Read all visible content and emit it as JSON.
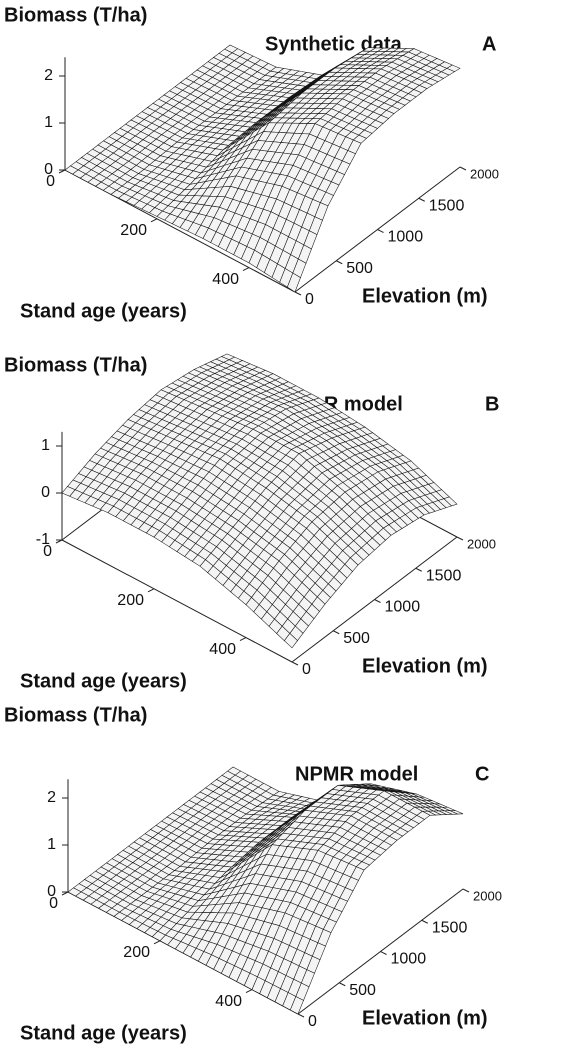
{
  "chart_data": [
    {
      "type": "surface",
      "title": "Synthetic data",
      "panel_label": "A",
      "z_label": "Biomass (T/ha)",
      "x_label": "Stand age (years)",
      "y_label": "Elevation (m)",
      "x": [
        0,
        100,
        200,
        300,
        400,
        500
      ],
      "y": [
        0,
        400,
        800,
        1200,
        1600,
        2000
      ],
      "z": [
        [
          0,
          0,
          0,
          0,
          0,
          0
        ],
        [
          0,
          0,
          0.05,
          0.05,
          0.05,
          0.05
        ],
        [
          0.05,
          0.2,
          0.4,
          0.45,
          0.45,
          0.4
        ],
        [
          0.1,
          0.9,
          1.5,
          1.6,
          1.6,
          1.5
        ],
        [
          0.1,
          1.2,
          2,
          2.1,
          2.1,
          2
        ],
        [
          0,
          1.3,
          2.1,
          2.2,
          2.2,
          2.1
        ]
      ],
      "xlim": [
        0,
        500
      ],
      "ylim": [
        0,
        2000
      ],
      "zlim": [
        0,
        2.4
      ],
      "xticks": [
        0,
        200,
        400
      ],
      "yticks": [
        0,
        500,
        1000,
        1500,
        2000
      ],
      "zticks": [
        0,
        1,
        2
      ]
    },
    {
      "type": "surface",
      "title": "MLR model",
      "panel_label": "B",
      "z_label": "Biomass (T/ha)",
      "x_label": "Stand age (years)",
      "y_label": "Elevation (m)",
      "x": [
        0,
        100,
        200,
        300,
        400,
        500
      ],
      "y": [
        0,
        400,
        800,
        1200,
        1600,
        2000
      ],
      "z": [
        [
          0,
          0.3,
          0.5,
          0.6,
          0.5,
          0.3
        ],
        [
          0.1,
          0.4,
          0.6,
          0.7,
          0.6,
          0.4
        ],
        [
          0.1,
          0.4,
          0.7,
          0.8,
          0.7,
          0.4
        ],
        [
          0,
          0.3,
          0.6,
          0.8,
          0.6,
          0.3
        ],
        [
          -0.3,
          0.1,
          0.4,
          0.5,
          0.4,
          0.1
        ],
        [
          -0.7,
          -0.3,
          0,
          0.1,
          0,
          -0.3
        ]
      ],
      "xlim": [
        0,
        500
      ],
      "ylim": [
        0,
        2000
      ],
      "zlim": [
        -1,
        1.3
      ],
      "xticks": [
        0,
        200,
        400
      ],
      "yticks": [
        0,
        500,
        1000,
        1500,
        2000
      ],
      "zticks": [
        -1,
        0,
        1
      ]
    },
    {
      "type": "surface",
      "title": "NPMR model",
      "panel_label": "C",
      "z_label": "Biomass (T/ha)",
      "x_label": "Stand age (years)",
      "y_label": "Elevation (m)",
      "x": [
        0,
        100,
        200,
        300,
        400,
        500
      ],
      "y": [
        0,
        400,
        800,
        1200,
        1600,
        2000
      ],
      "z": [
        [
          0,
          0,
          0,
          0,
          0,
          0
        ],
        [
          0,
          0,
          0,
          0.05,
          0.05,
          0
        ],
        [
          0,
          0.2,
          0.4,
          0.5,
          0.5,
          0.3
        ],
        [
          0,
          0.8,
          1.5,
          1.7,
          1.7,
          1.2
        ],
        [
          0,
          1.1,
          1.9,
          2.1,
          2.1,
          1.5
        ],
        [
          0,
          1.2,
          2,
          2.1,
          2.1,
          1.6
        ]
      ],
      "xlim": [
        0,
        500
      ],
      "ylim": [
        0,
        2000
      ],
      "zlim": [
        0,
        2.4
      ],
      "xticks": [
        0,
        200,
        400
      ],
      "yticks": [
        0,
        500,
        1000,
        1500,
        2000
      ],
      "zticks": [
        0,
        1,
        2
      ]
    }
  ]
}
